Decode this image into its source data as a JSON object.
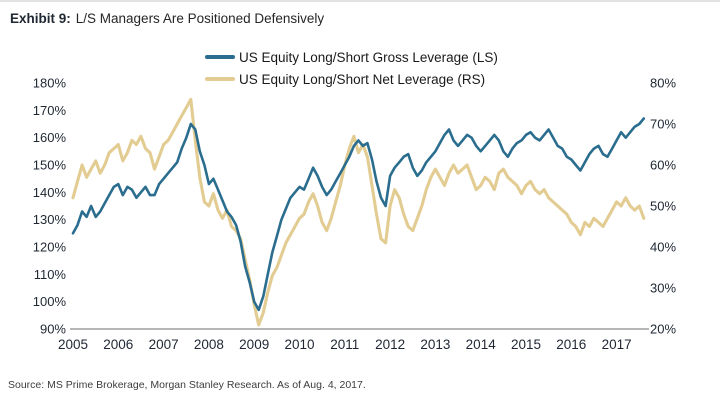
{
  "title": {
    "exhibit": "Exhibit 9:",
    "text": "L/S Managers Are Positioned Defensively"
  },
  "legend": [
    {
      "label": "US Equity Long/Short Gross Leverage (LS)",
      "color": "#2b6d8e"
    },
    {
      "label": "US Equity Long/Short Net Leverage (RS)",
      "color": "#e2cc92"
    }
  ],
  "source": "Source: MS Prime Brokerage, Morgan Stanley Research. As of Aug. 4, 2017.",
  "chart_data": {
    "type": "line",
    "title": "L/S Managers Are Positioned Defensively",
    "x_unit": "year",
    "grid": false,
    "legend_position": "top-center",
    "left_axis": {
      "ticks": [
        90,
        100,
        110,
        120,
        130,
        140,
        150,
        160,
        170,
        180
      ],
      "suffix": "%",
      "range": [
        90,
        180
      ]
    },
    "right_axis": {
      "ticks": [
        20,
        30,
        40,
        50,
        60,
        70,
        80
      ],
      "suffix": "%",
      "range": [
        20,
        80
      ]
    },
    "x_axis": {
      "ticks": [
        2005,
        2006,
        2007,
        2008,
        2009,
        2010,
        2011,
        2012,
        2013,
        2014,
        2015,
        2016,
        2017
      ]
    },
    "x": [
      2005.0,
      2005.1,
      2005.2,
      2005.3,
      2005.4,
      2005.5,
      2005.6,
      2005.7,
      2005.8,
      2005.9,
      2006.0,
      2006.1,
      2006.2,
      2006.3,
      2006.4,
      2006.5,
      2006.6,
      2006.7,
      2006.8,
      2006.9,
      2007.0,
      2007.1,
      2007.2,
      2007.3,
      2007.4,
      2007.5,
      2007.6,
      2007.7,
      2007.8,
      2007.9,
      2008.0,
      2008.1,
      2008.2,
      2008.3,
      2008.4,
      2008.5,
      2008.6,
      2008.7,
      2008.8,
      2008.9,
      2009.0,
      2009.1,
      2009.2,
      2009.3,
      2009.4,
      2009.5,
      2009.6,
      2009.7,
      2009.8,
      2009.9,
      2010.0,
      2010.1,
      2010.2,
      2010.3,
      2010.4,
      2010.5,
      2010.6,
      2010.7,
      2010.8,
      2010.9,
      2011.0,
      2011.1,
      2011.2,
      2011.3,
      2011.4,
      2011.5,
      2011.6,
      2011.7,
      2011.8,
      2011.9,
      2012.0,
      2012.1,
      2012.2,
      2012.3,
      2012.4,
      2012.5,
      2012.6,
      2012.7,
      2012.8,
      2012.9,
      2013.0,
      2013.1,
      2013.2,
      2013.3,
      2013.4,
      2013.5,
      2013.6,
      2013.7,
      2013.8,
      2013.9,
      2014.0,
      2014.1,
      2014.2,
      2014.3,
      2014.4,
      2014.5,
      2014.6,
      2014.7,
      2014.8,
      2014.9,
      2015.0,
      2015.1,
      2015.2,
      2015.3,
      2015.4,
      2015.5,
      2015.6,
      2015.7,
      2015.8,
      2015.9,
      2016.0,
      2016.1,
      2016.2,
      2016.3,
      2016.4,
      2016.5,
      2016.6,
      2016.7,
      2016.8,
      2016.9,
      2017.0,
      2017.1,
      2017.2,
      2017.3,
      2017.4,
      2017.5,
      2017.6
    ],
    "series": [
      {
        "name": "US Equity Long/Short Gross Leverage (LS)",
        "axis": "left",
        "color": "#2b6d8e",
        "values": [
          125,
          128,
          133,
          131,
          135,
          131,
          133,
          136,
          139,
          142,
          143,
          139,
          142,
          141,
          138,
          140,
          142,
          139,
          139,
          143,
          145,
          147,
          149,
          151,
          156,
          160,
          165,
          163,
          155,
          150,
          143,
          145,
          141,
          137,
          133,
          131,
          128,
          122,
          113,
          107,
          100,
          97,
          102,
          110,
          118,
          124,
          130,
          134,
          138,
          140,
          142,
          141,
          145,
          149,
          146,
          142,
          139,
          141,
          144,
          147,
          150,
          153,
          157,
          159,
          157,
          158,
          152,
          144,
          138,
          135,
          146,
          149,
          151,
          153,
          154,
          149,
          146,
          148,
          151,
          153,
          155,
          158,
          161,
          163,
          159,
          157,
          159,
          161,
          160,
          157,
          155,
          157,
          159,
          161,
          159,
          155,
          153,
          156,
          158,
          159,
          161,
          162,
          160,
          159,
          161,
          163,
          160,
          157,
          156,
          153,
          152,
          150,
          148,
          151,
          154,
          156,
          157,
          154,
          153,
          156,
          159,
          162,
          160,
          162,
          164,
          165,
          167
        ]
      },
      {
        "name": "US Equity Long/Short Net Leverage (RS)",
        "axis": "right",
        "color": "#e2cc92",
        "values": [
          52,
          56,
          60,
          57,
          59,
          61,
          58,
          60,
          63,
          64,
          65,
          61,
          63,
          66,
          65,
          67,
          64,
          63,
          59,
          62,
          65,
          66,
          68,
          70,
          72,
          74,
          76,
          66,
          57,
          51,
          50,
          53,
          49,
          47,
          49,
          45,
          44,
          42,
          37,
          32,
          26,
          21,
          24,
          29,
          33,
          35,
          38,
          41,
          43,
          45,
          47,
          48,
          51,
          53,
          50,
          46,
          44,
          47,
          51,
          55,
          60,
          64,
          67,
          63,
          65,
          62,
          55,
          48,
          42,
          41,
          50,
          54,
          52,
          48,
          45,
          44,
          47,
          50,
          54,
          57,
          59,
          57,
          55,
          58,
          60,
          58,
          59,
          60,
          57,
          54,
          55,
          57,
          56,
          54,
          58,
          59,
          57,
          56,
          55,
          53,
          55,
          56,
          54,
          53,
          54,
          52,
          51,
          50,
          49,
          48,
          46,
          45,
          43,
          46,
          45,
          47,
          46,
          45,
          47,
          49,
          51,
          50,
          52,
          50,
          49,
          50,
          47
        ]
      }
    ]
  }
}
